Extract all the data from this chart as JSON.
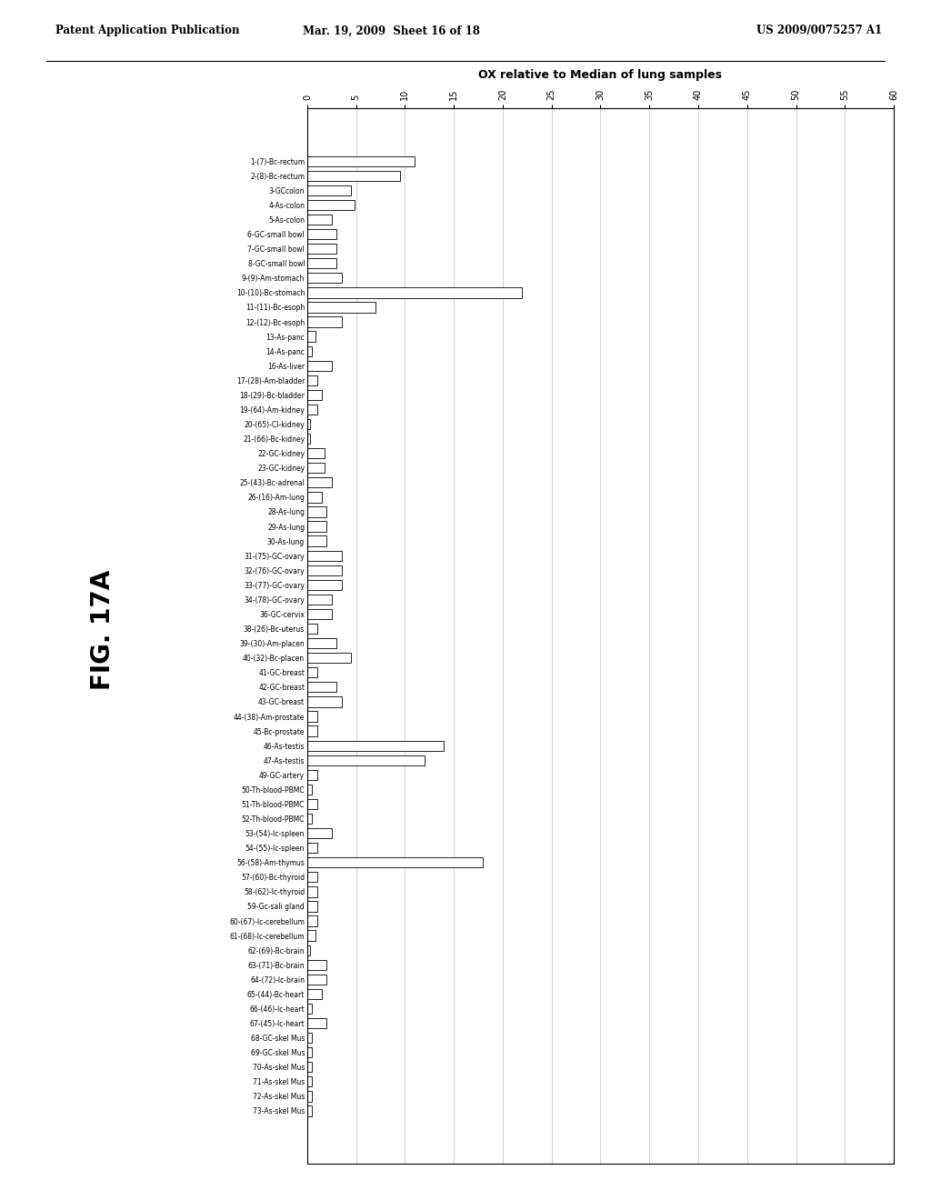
{
  "title": "OX relative to Median of lung samples",
  "header_left": "Patent Application Publication",
  "header_center": "Mar. 19, 2009  Sheet 16 of 18",
  "header_right": "US 2009/0075257 A1",
  "fig_label": "FIG. 17A",
  "xlim": [
    0,
    60
  ],
  "xticks": [
    0,
    5,
    10,
    15,
    20,
    25,
    30,
    35,
    40,
    45,
    50,
    55,
    60
  ],
  "categories": [
    "1-(7)-Bc-rectum",
    "2-(8)-Bc-rectum",
    "3-GCcolon",
    "4-As-colon",
    "5-As-colon",
    "6-GC-small bowl",
    "7-GC-small bowl",
    "8-GC-small bowl",
    "9-(9)-Am-stomach",
    "10-(10)-Bc-stomach",
    "11-(11)-Bc-esoph",
    "12-(12)-Bc-esoph",
    "13-As-panc",
    "14-As-panc",
    "16-As-liver",
    "17-(28)-Am-bladder",
    "18-(29)-Bc-bladder",
    "19-(64)-Am-kidney",
    "20-(65)-Cl-kidney",
    "21-(66)-Bc-kidney",
    "22-GC-kidney",
    "23-GC-kidney",
    "25-(43)-Bc-adrenal",
    "26-(16)-Am-lung",
    "28-As-lung",
    "29-As-lung",
    "30-As-lung",
    "31-(75)-GC-ovary",
    "32-(76)-GC-ovary",
    "33-(77)-GC-ovary",
    "34-(78)-GC-ovary",
    "36-GC-cervix",
    "38-(26)-Bc-uterus",
    "39-(30)-Am-placen",
    "40-(32)-Bc-placen",
    "41-GC-breast",
    "42-GC-breast",
    "43-GC-breast",
    "44-(38)-Am-prostate",
    "45-Bc-prostate",
    "46-As-testis",
    "47-As-testis",
    "49-GC-artery",
    "50-Th-blood-PBMC",
    "51-Th-blood-PBMC",
    "52-Th-blood-PBMC",
    "53-(54)-lc-spleen",
    "54-(55)-lc-spleen",
    "56-(58)-Am-thymus",
    "57-(60)-Bc-thyroid",
    "58-(62)-lc-thyroid",
    "59-Gc-sali gland",
    "60-(67)-lc-cerebellum",
    "61-(68)-lc-cerebellum",
    "62-(69)-Bc-brain",
    "63-(71)-Bc-brain",
    "64-(72)-lc-brain",
    "65-(44)-Bc-heart",
    "66-(46)-lc-heart",
    "67-(45)-lc-heart",
    "68-GC-skel Mus",
    "69-GC-skel Mus",
    "70-As-skel Mus",
    "71-As-skel Mus",
    "72-As-skel Mus",
    "73-As-skel Mus"
  ],
  "values": [
    11.0,
    9.5,
    4.5,
    4.8,
    2.5,
    3.0,
    3.0,
    3.0,
    3.5,
    22.0,
    7.0,
    3.5,
    0.8,
    0.5,
    2.5,
    1.0,
    1.5,
    1.0,
    0.3,
    0.3,
    1.8,
    1.8,
    2.5,
    1.5,
    2.0,
    2.0,
    2.0,
    3.5,
    3.5,
    3.5,
    2.5,
    2.5,
    1.0,
    3.0,
    4.5,
    1.0,
    3.0,
    3.5,
    1.0,
    1.0,
    14.0,
    12.0,
    1.0,
    0.5,
    1.0,
    0.5,
    2.5,
    1.0,
    18.0,
    1.0,
    1.0,
    1.0,
    1.0,
    0.8,
    0.3,
    2.0,
    2.0,
    1.5,
    0.5,
    2.0,
    0.5,
    0.5,
    0.5,
    0.5,
    0.5,
    0.5
  ],
  "bar_color": "#ffffff",
  "bar_edge_color": "#000000",
  "bg_color": "#ffffff",
  "bar_height": 0.7
}
